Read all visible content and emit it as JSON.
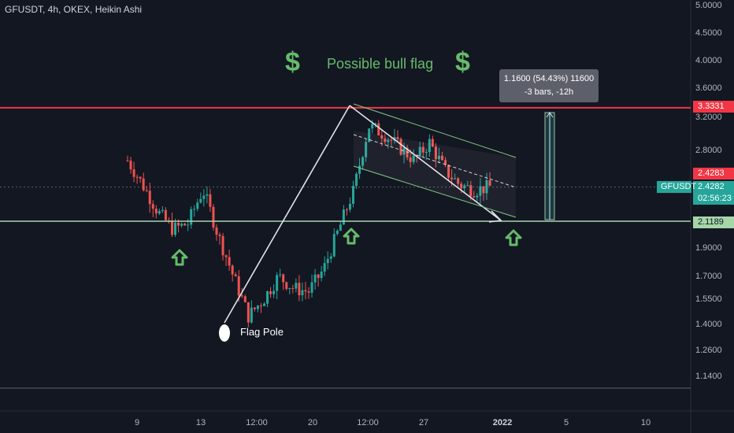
{
  "header": {
    "title": "GFUSDT, 4h, OKEX, Heikin Ashi"
  },
  "annotations": {
    "headline": "Possible bull flag",
    "dollar_sign": "$",
    "flag_pole": "Flag Pole",
    "measure_line1": "1.1600 (54.43%) 11600",
    "measure_line2": "-3 bars, -12h"
  },
  "price_tags": {
    "resistance": "3.3331",
    "last": "2.4283",
    "current": "2.4282",
    "countdown": "02:56:23",
    "support": "2.1189",
    "symbol": "GFUSDT"
  },
  "colors": {
    "background": "#131722",
    "up": "#26a69a",
    "down": "#ef5350",
    "resistance": "#f23645",
    "support": "#a5d6a7",
    "annotation": "#66bb6a"
  },
  "chart_data": {
    "type": "candlestick",
    "title": "GFUSDT, 4h, OKEX, Heikin Ashi",
    "y_scale": "log",
    "ylim": [
      1.07,
      5.1
    ],
    "y_ticks": [
      "5.0000",
      "4.5000",
      "4.0000",
      "3.6000",
      "3.2000",
      "2.8000",
      "2.4282",
      "1.9000",
      "1.7000",
      "1.5500",
      "1.4000",
      "1.2600",
      "1.1400"
    ],
    "x_ticks": [
      "9",
      "13",
      "12:00",
      "20",
      "12:00",
      "27",
      "2022",
      "5",
      "10"
    ],
    "horizontal_levels": {
      "resistance": 3.3331,
      "support": 2.1189
    },
    "approx_price_path": [
      2.7,
      2.45,
      2.2,
      2.05,
      2.1,
      2.4,
      2.0,
      1.7,
      1.45,
      1.55,
      1.7,
      1.62,
      1.6,
      1.75,
      2.05,
      2.4,
      3.1,
      3.0,
      2.85,
      2.7,
      2.9,
      2.6,
      2.45,
      2.4,
      2.43
    ],
    "measure": {
      "change": "1.1600 (54.43%) 11600",
      "bars": "-3 bars, -12h"
    }
  }
}
